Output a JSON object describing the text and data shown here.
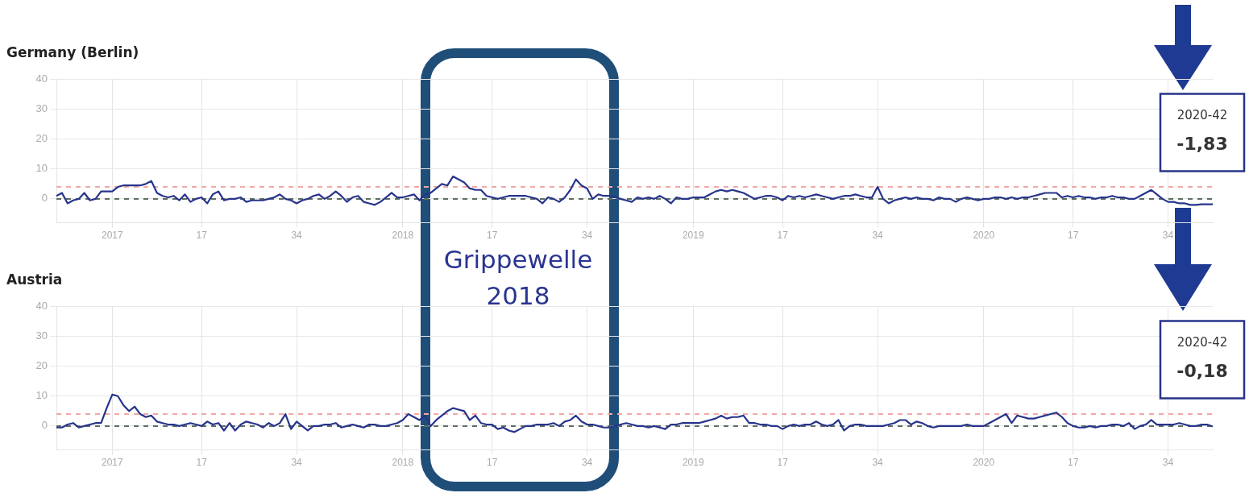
{
  "chart_data": [
    {
      "type": "line",
      "title": "Germany (Berlin)",
      "annotations": [
        "Grippewelle 2018",
        "2020-42",
        "-1,83"
      ],
      "categories": [
        null,
        null,
        null,
        null,
        null,
        null,
        null,
        null,
        null,
        null,
        "2017",
        null,
        null,
        null,
        null,
        null,
        null,
        null,
        null,
        null,
        null,
        null,
        null,
        null,
        null,
        null,
        "17",
        null,
        null,
        null,
        null,
        null,
        null,
        null,
        null,
        null,
        null,
        null,
        null,
        null,
        null,
        null,
        null,
        "34",
        null,
        null,
        null,
        null,
        null,
        null,
        null,
        null,
        null,
        null,
        null,
        null,
        null,
        null,
        null,
        null,
        null,
        null,
        "2018",
        null,
        null,
        null,
        null,
        null,
        null,
        null,
        null,
        null,
        null,
        null,
        null,
        null,
        null,
        null,
        "17",
        null,
        null,
        null,
        null,
        null,
        null,
        null,
        null,
        null,
        null,
        null,
        null,
        null,
        null,
        null,
        null,
        "34",
        null,
        null,
        null,
        null,
        null,
        null,
        null,
        null,
        null,
        null,
        null,
        null,
        null,
        null,
        null,
        null,
        null,
        null,
        "2019",
        null,
        null,
        null,
        null,
        null,
        null,
        null,
        null,
        null,
        null,
        null,
        null,
        null,
        null,
        null,
        "17",
        null,
        null,
        null,
        null,
        null,
        null,
        null,
        null,
        null,
        null,
        null,
        null,
        null,
        null,
        null,
        null,
        "34",
        null,
        null,
        null,
        null,
        null,
        null,
        null,
        null,
        null,
        null,
        null,
        null,
        null,
        null,
        null,
        null,
        null,
        null,
        "2020",
        null,
        null,
        null,
        null,
        null,
        null,
        null,
        null,
        null,
        null,
        null,
        null,
        null,
        null,
        null,
        "17",
        null,
        null,
        null,
        null,
        null,
        null,
        null,
        null,
        null,
        null,
        null,
        null,
        null,
        null,
        null,
        null,
        "34",
        null,
        null,
        null,
        null,
        null,
        null,
        null,
        null
      ],
      "series": [
        {
          "color": "#27348b",
          "values": [
            1,
            2,
            -1.5,
            -0.5,
            0,
            2,
            -0.5,
            0,
            2.5,
            2.5,
            2.5,
            4,
            4.5,
            4.5,
            4.5,
            4.5,
            5,
            6,
            2,
            1,
            0.5,
            1,
            -0.5,
            1.5,
            -1,
            0,
            0.5,
            -1.5,
            1.5,
            2.5,
            -0.5,
            0,
            0,
            0.5,
            -1,
            -0.5,
            -0.5,
            -0.5,
            0,
            0.5,
            1.5,
            0,
            -0.5,
            -1.5,
            -0.5,
            0,
            1,
            1.5,
            0,
            1,
            2.5,
            1,
            -1,
            0.5,
            1,
            -1,
            -1.5,
            -2,
            -1,
            0.5,
            2,
            0.5,
            0.5,
            1,
            1.5,
            -0.5,
            1.5,
            2,
            3.5,
            5,
            4.5,
            7.5,
            6.5,
            5.5,
            3.5,
            3,
            3,
            1,
            0.5,
            0,
            0.5,
            1,
            1,
            1,
            1,
            0.5,
            0,
            -1.5,
            0.5,
            0,
            -1,
            0.5,
            3,
            6.5,
            4.5,
            3.5,
            0,
            1.5,
            1,
            1,
            0.5,
            0,
            -0.5,
            -1,
            0.5,
            0,
            0.5,
            0,
            1,
            0,
            -1.5,
            0.5,
            0,
            0,
            0.5,
            0.5,
            0.5,
            1.5,
            2.5,
            3,
            2.5,
            3,
            2.5,
            2,
            1,
            0,
            0.5,
            1,
            1,
            0.5,
            -0.5,
            1,
            0.5,
            1,
            0.5,
            1,
            1.5,
            1,
            0.5,
            0,
            0.5,
            1,
            1,
            1.5,
            1,
            0.5,
            0.5,
            4,
            0,
            -1.5,
            -0.5,
            0,
            0.5,
            0,
            0.5,
            0,
            0,
            -0.5,
            0.5,
            0,
            0,
            -1,
            0,
            0.5,
            0,
            -0.5,
            0,
            0,
            0.5,
            0.5,
            0,
            0.5,
            0,
            0.5,
            0.5,
            1,
            1.5,
            2,
            2,
            2,
            0.5,
            1,
            0.5,
            1,
            0.5,
            0.5,
            0,
            0.5,
            0.5,
            1,
            0.5,
            0.5,
            0,
            0,
            1,
            2,
            3,
            1.5,
            0,
            -1,
            -1,
            -1.5,
            -1.5,
            -2,
            -2,
            -1.8,
            -1.8,
            -1.83
          ]
        }
      ],
      "ylim": [
        -8,
        40
      ],
      "yticks": [
        0,
        10,
        20,
        30,
        40
      ],
      "ref_lines": [
        {
          "axis": "y",
          "value": 4,
          "color": "#f2a7a7",
          "line_style": "dashed"
        },
        {
          "axis": "y",
          "value": 0,
          "color": "#5f6f62",
          "line_style": "dashed"
        }
      ],
      "grid": true,
      "legend": false,
      "marker": "none",
      "line_style": "solid"
    },
    {
      "type": "line",
      "title": "Austria",
      "annotations": [
        "2020-42",
        "-0,18"
      ],
      "categories": [
        null,
        null,
        null,
        null,
        null,
        null,
        null,
        null,
        null,
        null,
        "2017",
        null,
        null,
        null,
        null,
        null,
        null,
        null,
        null,
        null,
        null,
        null,
        null,
        null,
        null,
        null,
        "17",
        null,
        null,
        null,
        null,
        null,
        null,
        null,
        null,
        null,
        null,
        null,
        null,
        null,
        null,
        null,
        null,
        "34",
        null,
        null,
        null,
        null,
        null,
        null,
        null,
        null,
        null,
        null,
        null,
        null,
        null,
        null,
        null,
        null,
        null,
        null,
        "2018",
        null,
        null,
        null,
        null,
        null,
        null,
        null,
        null,
        null,
        null,
        null,
        null,
        null,
        null,
        null,
        "17",
        null,
        null,
        null,
        null,
        null,
        null,
        null,
        null,
        null,
        null,
        null,
        null,
        null,
        null,
        null,
        null,
        "34",
        null,
        null,
        null,
        null,
        null,
        null,
        null,
        null,
        null,
        null,
        null,
        null,
        null,
        null,
        null,
        null,
        null,
        null,
        "2019",
        null,
        null,
        null,
        null,
        null,
        null,
        null,
        null,
        null,
        null,
        null,
        null,
        null,
        null,
        null,
        "17",
        null,
        null,
        null,
        null,
        null,
        null,
        null,
        null,
        null,
        null,
        null,
        null,
        null,
        null,
        null,
        null,
        "34",
        null,
        null,
        null,
        null,
        null,
        null,
        null,
        null,
        null,
        null,
        null,
        null,
        null,
        null,
        null,
        null,
        null,
        null,
        "2020",
        null,
        null,
        null,
        null,
        null,
        null,
        null,
        null,
        null,
        null,
        null,
        null,
        null,
        null,
        null,
        "17",
        null,
        null,
        null,
        null,
        null,
        null,
        null,
        null,
        null,
        null,
        null,
        null,
        null,
        null,
        null,
        null,
        "34",
        null,
        null,
        null,
        null,
        null,
        null,
        null,
        null
      ],
      "series": [
        {
          "color": "#27348b",
          "values": [
            -0.5,
            -0.5,
            0.5,
            1,
            -0.5,
            0,
            0.5,
            1,
            1,
            6,
            10.5,
            10,
            7,
            5,
            6.5,
            4,
            3,
            3.5,
            1.5,
            1,
            0.5,
            0.5,
            0,
            0.5,
            1,
            0.5,
            0,
            1.5,
            0.5,
            1,
            -1.5,
            1,
            -1.5,
            0.5,
            1.5,
            1,
            0.5,
            -0.5,
            1,
            0,
            1,
            4,
            -1,
            1.5,
            0,
            -1.5,
            0,
            0,
            0.5,
            0.5,
            1,
            -0.5,
            0,
            0.5,
            0,
            -0.5,
            0.5,
            0.5,
            0,
            0,
            0.5,
            1,
            2,
            4,
            3,
            2,
            3.5,
            0,
            2,
            3.5,
            5,
            6,
            5.5,
            5,
            2,
            3.5,
            1,
            0.5,
            0.5,
            -1,
            -0.5,
            -1.5,
            -2,
            -1,
            0,
            0,
            0.5,
            0.5,
            0.5,
            1,
            0,
            1.5,
            2,
            3.5,
            1.5,
            0.5,
            0.5,
            0,
            -0.5,
            -0.5,
            0,
            0.5,
            1,
            0.5,
            0,
            0,
            -0.5,
            0,
            -0.5,
            -1,
            0.5,
            0.5,
            1,
            1,
            1,
            1,
            1.5,
            2,
            2.5,
            3.5,
            2.5,
            3,
            3,
            3.5,
            1,
            1,
            0.5,
            0.5,
            0,
            0,
            -1,
            0,
            0.5,
            0,
            0.5,
            0.5,
            1.5,
            0.5,
            0,
            0.5,
            2,
            -1.5,
            0,
            0.5,
            0.5,
            0,
            0,
            0,
            0,
            0.5,
            1,
            2,
            2,
            0.5,
            1.5,
            1,
            0,
            -0.5,
            0,
            0,
            0,
            0,
            0,
            0.5,
            0,
            0,
            0,
            1,
            2,
            3,
            4,
            1,
            3.5,
            3,
            2.5,
            2.5,
            3,
            3.5,
            4,
            4.5,
            3,
            1,
            0,
            -0.5,
            -0.5,
            0,
            -0.5,
            0,
            0,
            0.5,
            0.5,
            0,
            1,
            -1,
            0,
            0.5,
            2,
            0.5,
            0.5,
            0.5,
            0.5,
            1,
            0.5,
            0,
            0,
            0.5,
            0.5,
            -0.18
          ]
        }
      ],
      "ylim": [
        -8,
        40
      ],
      "yticks": [
        0,
        10,
        20,
        30,
        40
      ],
      "ref_lines": [
        {
          "axis": "y",
          "value": 4,
          "color": "#f2a7a7",
          "line_style": "dashed"
        },
        {
          "axis": "y",
          "value": 0,
          "color": "#5f6f62",
          "line_style": "dashed"
        }
      ],
      "grid": true,
      "legend": false,
      "marker": "none",
      "line_style": "solid"
    }
  ]
}
